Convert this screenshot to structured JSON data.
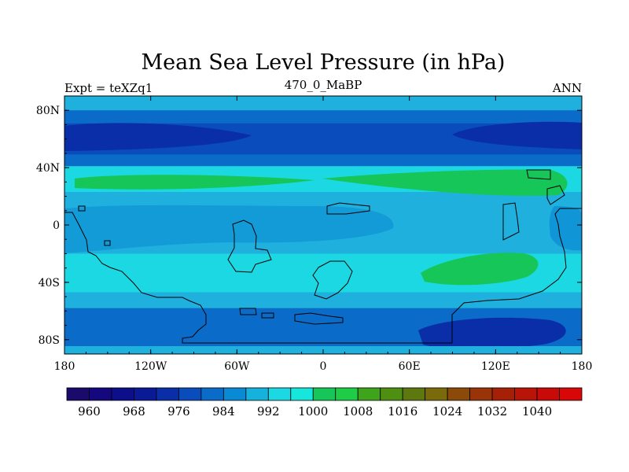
{
  "chart_data": {
    "type": "heatmap",
    "title": "Mean Sea Level Pressure (in hPa)",
    "subtitle_left": "Expt = teXZq1",
    "subtitle_center": "470_0_MaBP",
    "subtitle_right": "ANN",
    "x_range": [
      -180,
      180
    ],
    "y_range": [
      -90,
      90
    ],
    "x_ticks": [
      {
        "value": -180,
        "label": "180"
      },
      {
        "value": -120,
        "label": "120W"
      },
      {
        "value": -60,
        "label": "60W"
      },
      {
        "value": 0,
        "label": "0"
      },
      {
        "value": 60,
        "label": "60E"
      },
      {
        "value": 120,
        "label": "120E"
      },
      {
        "value": 180,
        "label": "180"
      }
    ],
    "y_ticks": [
      {
        "value": 80,
        "label": "80N"
      },
      {
        "value": 40,
        "label": "40N"
      },
      {
        "value": 0,
        "label": "0"
      },
      {
        "value": -40,
        "label": "40S"
      },
      {
        "value": -80,
        "label": "80S"
      }
    ],
    "colorbar": {
      "colors": [
        "#1a0a6b",
        "#15087e",
        "#0c0e8a",
        "#0a1a96",
        "#0a2ea8",
        "#0a4cbc",
        "#0a6cc8",
        "#0a8ad4",
        "#16b2de",
        "#1cd8e2",
        "#16e6dc",
        "#16c658",
        "#1ecc48",
        "#3ea41c",
        "#4e8e10",
        "#5e7810",
        "#7a6a0c",
        "#8c4a08",
        "#983408",
        "#a62008",
        "#b81408",
        "#c80a08",
        "#d80808"
      ],
      "labels": [
        {
          "index": 1,
          "text": "960"
        },
        {
          "index": 3,
          "text": "968"
        },
        {
          "index": 5,
          "text": "976"
        },
        {
          "index": 7,
          "text": "984"
        },
        {
          "index": 9,
          "text": "992"
        },
        {
          "index": 11,
          "text": "1000"
        },
        {
          "index": 13,
          "text": "1008"
        },
        {
          "index": 15,
          "text": "1016"
        },
        {
          "index": 17,
          "text": "1024"
        },
        {
          "index": 19,
          "text": "1032"
        },
        {
          "index": 21,
          "text": "1040"
        }
      ]
    },
    "pressure_field": {
      "background": "#1fb0de",
      "bands": [
        {
          "name": "north-polar",
          "lat_top": 90,
          "lat_bottom": 80,
          "color": "#1fb0de"
        },
        {
          "name": "north-subpolar-low",
          "lat_top": 80,
          "lat_bottom": 71,
          "color": "#0a6cc8"
        },
        {
          "name": "north-mid-low",
          "lat_top": 71,
          "lat_bottom": 49,
          "color": "#0a4cbc"
        },
        {
          "name": "north-mid-high",
          "lat_top": 49,
          "lat_bottom": 41,
          "color": "#0a6cc8"
        },
        {
          "name": "north-subtropical",
          "lat_top": 41,
          "lat_bottom": 23,
          "color": "#1cd8e2"
        },
        {
          "name": "tropics",
          "lat_top": 23,
          "lat_bottom": -20,
          "color": "#1fb0de"
        },
        {
          "name": "south-subtropical",
          "lat_top": -20,
          "lat_bottom": -47,
          "color": "#1cd8e2"
        },
        {
          "name": "south-mid",
          "lat_top": -47,
          "lat_bottom": -58,
          "color": "#1fb0de"
        },
        {
          "name": "south-subpolar",
          "lat_top": -58,
          "lat_bottom": -86,
          "color": "#0a6cc8"
        },
        {
          "name": "south-polar",
          "lat_top": -86,
          "lat_bottom": -90,
          "color": "#1fb0de"
        }
      ]
    }
  }
}
